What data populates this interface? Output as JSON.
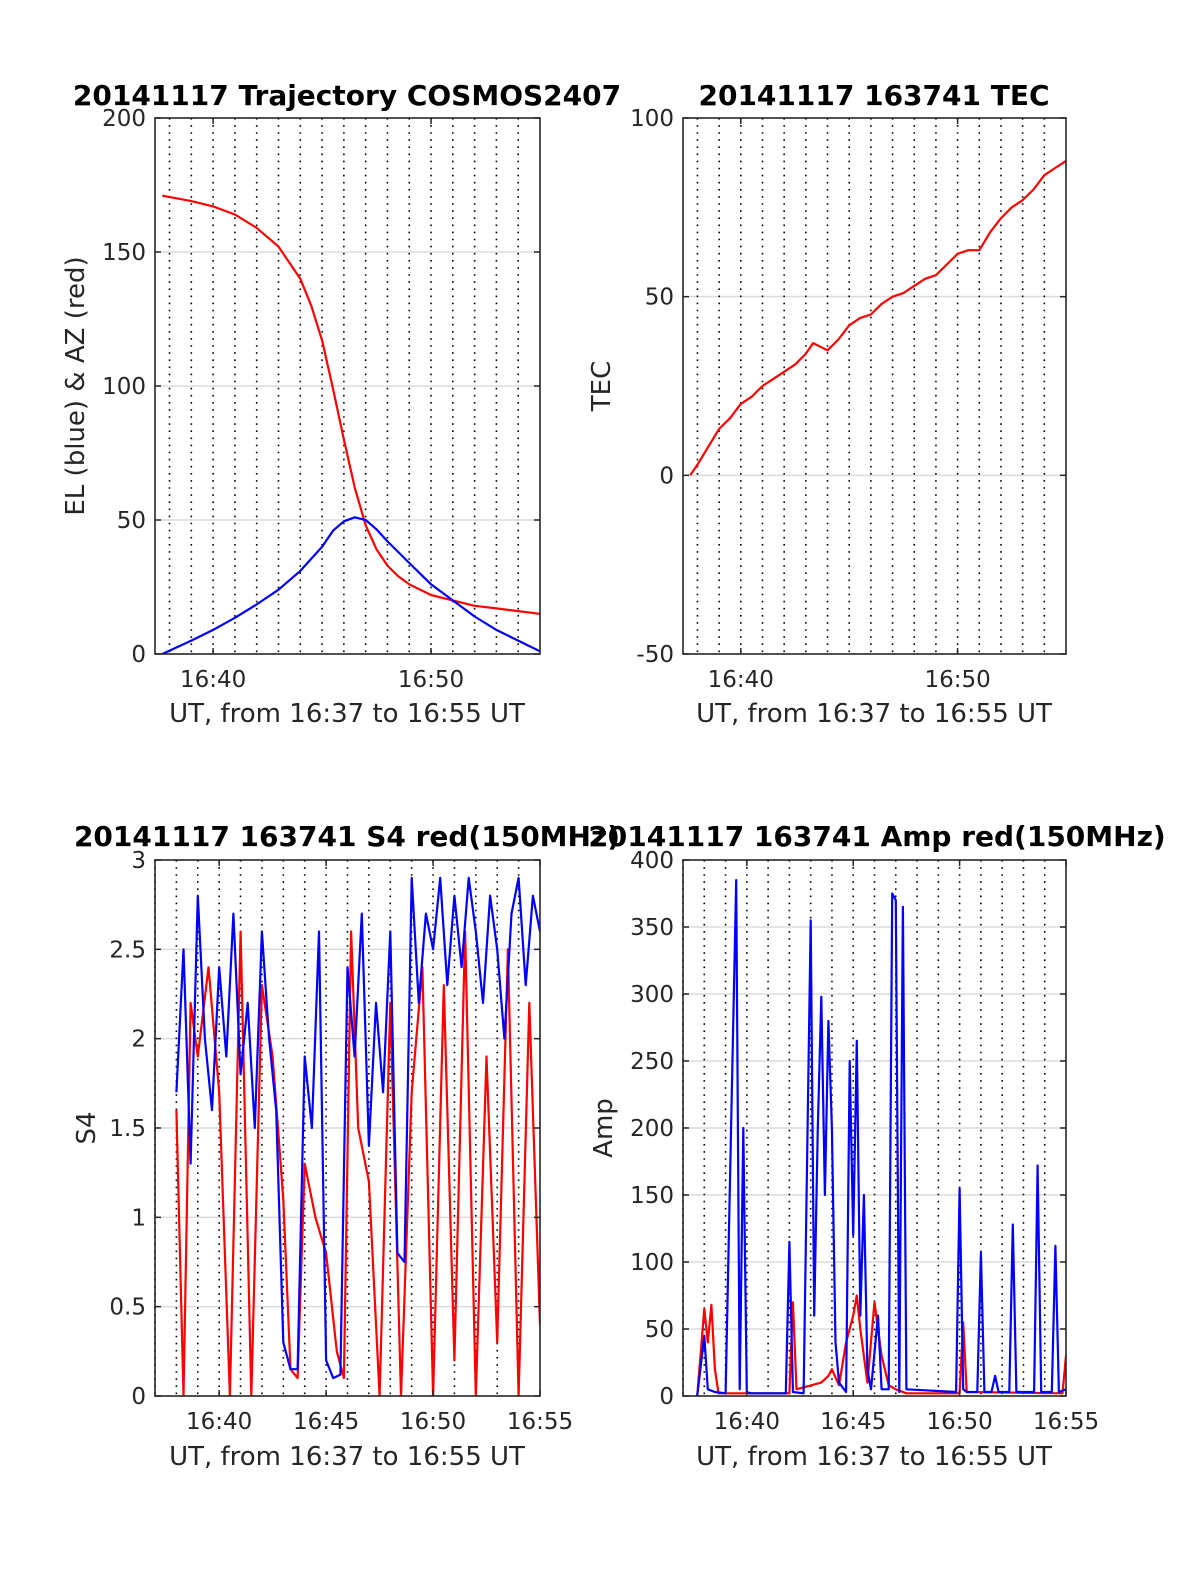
{
  "chart_data": [
    {
      "id": "traj",
      "type": "line",
      "title": "20141117 Trajectory COSMOS2407",
      "xlabel": "UT, from 16:37 to 16:55 UT",
      "ylabel": "EL (blue) & AZ (red)",
      "xlim": [
        "16:37:20",
        "16:55:00"
      ],
      "ylim": [
        0,
        200
      ],
      "xticks": [
        "16:40",
        "16:50"
      ],
      "yticks": [
        0,
        50,
        100,
        150,
        200
      ],
      "grid": {
        "x": "dotted-black",
        "y": "solid-light-gray"
      },
      "x_gridlines_every_minutes": 1,
      "series": [
        {
          "color": "#ff0000",
          "x": [
            "16:37:40",
            "16:39:00",
            "16:40:00",
            "16:41:00",
            "16:42:00",
            "16:43:00",
            "16:44:00",
            "16:44:30",
            "16:45:00",
            "16:45:30",
            "16:46:00",
            "16:46:30",
            "16:47:00",
            "16:47:30",
            "16:48:00",
            "16:48:30",
            "16:49:00",
            "16:50:00",
            "16:51:00",
            "16:52:00",
            "16:53:00",
            "16:54:00",
            "16:55:00"
          ],
          "y": [
            171,
            169,
            167,
            164,
            159,
            152,
            140,
            130,
            117,
            99,
            80,
            62,
            48,
            39,
            33,
            29,
            26,
            22,
            20,
            18,
            17,
            16,
            15
          ]
        },
        {
          "color": "#0000ff",
          "x": [
            "16:37:40",
            "16:39:00",
            "16:40:00",
            "16:41:00",
            "16:42:00",
            "16:43:00",
            "16:44:00",
            "16:45:00",
            "16:45:30",
            "16:46:00",
            "16:46:30",
            "16:47:00",
            "16:47:30",
            "16:48:00",
            "16:49:00",
            "16:50:00",
            "16:51:00",
            "16:52:00",
            "16:53:00",
            "16:54:00",
            "16:55:00"
          ],
          "y": [
            0,
            5,
            9,
            13.5,
            18.5,
            24,
            31,
            40,
            46,
            49.5,
            51,
            50,
            46.5,
            42,
            34,
            26,
            20,
            14,
            9,
            5,
            1
          ]
        }
      ]
    },
    {
      "id": "tec",
      "type": "line",
      "title": "20141117 163741 TEC",
      "xlabel": "UT, from 16:37 to 16:55 UT",
      "ylabel": "TEC",
      "xlim": [
        "16:37:20",
        "16:55:00"
      ],
      "ylim": [
        -50,
        100
      ],
      "xticks": [
        "16:40",
        "16:50"
      ],
      "yticks": [
        -50,
        0,
        50,
        100
      ],
      "grid": {
        "x": "dotted-black",
        "y": "solid-light-gray"
      },
      "x_gridlines_every_minutes": 1,
      "series": [
        {
          "color": "#ff0000",
          "x": [
            "16:37:40",
            "16:38:00",
            "16:38:30",
            "16:39:00",
            "16:39:30",
            "16:40:00",
            "16:40:30",
            "16:41:00",
            "16:41:30",
            "16:42:00",
            "16:42:30",
            "16:43:00",
            "16:43:20",
            "16:43:40",
            "16:44:00",
            "16:44:30",
            "16:45:00",
            "16:45:30",
            "16:46:00",
            "16:46:30",
            "16:47:00",
            "16:47:30",
            "16:48:00",
            "16:48:30",
            "16:49:00",
            "16:49:30",
            "16:50:00",
            "16:50:30",
            "16:51:00",
            "16:51:30",
            "16:52:00",
            "16:52:30",
            "16:53:00",
            "16:53:30",
            "16:54:00",
            "16:54:30",
            "16:55:00"
          ],
          "y": [
            0,
            3,
            8,
            13,
            16,
            20,
            22,
            25,
            27,
            29,
            31,
            34,
            37,
            36,
            35,
            38,
            42,
            44,
            45,
            48,
            50,
            51,
            53,
            55,
            56,
            59,
            62,
            63,
            63,
            68,
            72,
            75,
            77,
            80,
            84,
            86,
            88
          ]
        }
      ]
    },
    {
      "id": "s4",
      "type": "line",
      "title": "20141117 163741 S4 red(150MHz)",
      "xlabel": "UT, from 16:37 to 16:55 UT",
      "ylabel": "S4",
      "xlim": [
        "16:37:00",
        "16:55:00"
      ],
      "ylim": [
        0,
        3
      ],
      "xticks": [
        "16:40",
        "16:45",
        "16:50",
        "16:55"
      ],
      "yticks": [
        0,
        0.5,
        1,
        1.5,
        2,
        2.5,
        3
      ],
      "grid": {
        "x": "dotted-black",
        "y": "solid-light-gray"
      },
      "x_gridlines_every_minutes": 1,
      "series": [
        {
          "color": "#ff0000",
          "x": [
            "16:38:00",
            "16:38:20",
            "16:38:40",
            "16:39:00",
            "16:39:30",
            "16:40:00",
            "16:40:30",
            "16:41:00",
            "16:41:30",
            "16:42:00",
            "16:42:30",
            "16:43:00",
            "16:43:20",
            "16:43:40",
            "16:44:00",
            "16:44:30",
            "16:45:00",
            "16:45:30",
            "16:45:50",
            "16:46:10",
            "16:46:30",
            "16:47:00",
            "16:47:30",
            "16:48:00",
            "16:48:30",
            "16:49:00",
            "16:49:30",
            "16:50:00",
            "16:50:30",
            "16:51:00",
            "16:51:30",
            "16:52:00",
            "16:52:30",
            "16:53:00",
            "16:53:30",
            "16:54:00",
            "16:54:30",
            "16:55:00"
          ],
          "y": [
            1.6,
            0,
            2.2,
            1.9,
            2.4,
            1.7,
            0,
            2.6,
            0,
            2.3,
            1.9,
            1.1,
            0.15,
            0.1,
            1.3,
            1.0,
            0.8,
            0.25,
            0.1,
            2.6,
            1.5,
            1.2,
            0,
            2.2,
            0,
            1.7,
            2.4,
            0,
            2.3,
            0.2,
            2.6,
            0,
            1.9,
            0.3,
            2.5,
            0,
            2.2,
            0.4
          ]
        },
        {
          "color": "#0000ff",
          "x": [
            "16:38:00",
            "16:38:20",
            "16:38:40",
            "16:39:00",
            "16:39:20",
            "16:39:40",
            "16:40:00",
            "16:40:20",
            "16:40:40",
            "16:41:00",
            "16:41:20",
            "16:41:40",
            "16:42:00",
            "16:42:20",
            "16:42:40",
            "16:43:00",
            "16:43:20",
            "16:43:40",
            "16:44:00",
            "16:44:20",
            "16:44:40",
            "16:45:00",
            "16:45:20",
            "16:45:40",
            "16:46:00",
            "16:46:20",
            "16:46:40",
            "16:47:00",
            "16:47:20",
            "16:47:40",
            "16:48:00",
            "16:48:20",
            "16:48:40",
            "16:49:00",
            "16:49:20",
            "16:49:40",
            "16:50:00",
            "16:50:20",
            "16:50:40",
            "16:51:00",
            "16:51:20",
            "16:51:40",
            "16:52:00",
            "16:52:20",
            "16:52:40",
            "16:53:00",
            "16:53:20",
            "16:53:40",
            "16:54:00",
            "16:54:20",
            "16:54:40",
            "16:55:00"
          ],
          "y": [
            1.7,
            2.5,
            1.3,
            2.8,
            2.0,
            1.6,
            2.4,
            1.9,
            2.7,
            1.8,
            2.2,
            1.5,
            2.6,
            2.0,
            1.6,
            0.3,
            0.15,
            0.15,
            1.9,
            1.5,
            2.6,
            0.2,
            0.1,
            0.12,
            2.4,
            1.9,
            2.7,
            1.4,
            2.2,
            1.7,
            2.6,
            0.8,
            0.75,
            2.9,
            2.2,
            2.7,
            2.5,
            2.9,
            2.3,
            2.8,
            2.4,
            2.9,
            2.6,
            2.2,
            2.8,
            2.5,
            2.0,
            2.7,
            2.9,
            2.3,
            2.8,
            2.6
          ]
        }
      ]
    },
    {
      "id": "amp",
      "type": "line",
      "title": "20141117 163741 Amp red(150MHz)",
      "xlabel": "UT, from 16:37 to 16:55 UT",
      "ylabel": "Amp",
      "xlim": [
        "16:37:00",
        "16:55:00"
      ],
      "ylim": [
        0,
        400
      ],
      "xticks": [
        "16:40",
        "16:45",
        "16:50",
        "16:55"
      ],
      "yticks": [
        0,
        50,
        100,
        150,
        200,
        250,
        300,
        350,
        400
      ],
      "grid": {
        "x": "dotted-black",
        "y": "solid-light-gray"
      },
      "x_gridlines_every_minutes": 1,
      "series": [
        {
          "color": "#ff0000",
          "x": [
            "16:37:40",
            "16:38:00",
            "16:38:10",
            "16:38:20",
            "16:38:30",
            "16:38:40",
            "16:42:00",
            "16:42:10",
            "16:42:20",
            "16:43:30",
            "16:43:50",
            "16:44:00",
            "16:44:20",
            "16:44:40",
            "16:45:00",
            "16:45:10",
            "16:45:20",
            "16:45:40",
            "16:46:00",
            "16:46:20",
            "16:46:40",
            "16:47:00",
            "16:47:30",
            "16:50:00",
            "16:50:10",
            "16:50:20",
            "16:54:50",
            "16:55:00",
            "16:55:10"
          ],
          "y": [
            0,
            65,
            40,
            68,
            20,
            2,
            2,
            70,
            5,
            10,
            15,
            20,
            8,
            40,
            60,
            75,
            50,
            10,
            70,
            30,
            8,
            5,
            2,
            2,
            55,
            3,
            2,
            30,
            5
          ]
        },
        {
          "color": "#0000ff",
          "x": [
            "16:37:40",
            "16:38:00",
            "16:38:10",
            "16:38:30",
            "16:39:00",
            "16:39:30",
            "16:39:40",
            "16:39:50",
            "16:40:00",
            "16:40:10",
            "16:40:20",
            "16:41:50",
            "16:42:00",
            "16:42:10",
            "16:42:40",
            "16:43:00",
            "16:43:10",
            "16:43:20",
            "16:43:30",
            "16:43:40",
            "16:43:50",
            "16:44:00",
            "16:44:10",
            "16:44:20",
            "16:44:40",
            "16:44:50",
            "16:45:00",
            "16:45:10",
            "16:45:20",
            "16:45:30",
            "16:45:40",
            "16:45:50",
            "16:46:10",
            "16:46:20",
            "16:46:40",
            "16:46:50",
            "16:47:00",
            "16:47:10",
            "16:47:20",
            "16:47:30",
            "16:49:50",
            "16:50:00",
            "16:50:10",
            "16:50:20",
            "16:50:50",
            "16:51:00",
            "16:51:10",
            "16:51:30",
            "16:51:40",
            "16:51:50",
            "16:52:20",
            "16:52:30",
            "16:52:40",
            "16:53:30",
            "16:53:40",
            "16:53:50",
            "16:54:20",
            "16:54:30",
            "16:54:40",
            "16:55:00",
            "16:55:10"
          ],
          "y": [
            0,
            45,
            5,
            3,
            2,
            385,
            5,
            200,
            3,
            2,
            2,
            2,
            115,
            3,
            2,
            355,
            60,
            200,
            298,
            150,
            280,
            200,
            40,
            10,
            3,
            250,
            120,
            265,
            60,
            150,
            20,
            5,
            60,
            5,
            5,
            375,
            370,
            3,
            365,
            5,
            3,
            155,
            5,
            3,
            3,
            107,
            3,
            3,
            15,
            3,
            3,
            128,
            3,
            3,
            172,
            3,
            3,
            112,
            3,
            5,
            3
          ]
        }
      ]
    }
  ]
}
